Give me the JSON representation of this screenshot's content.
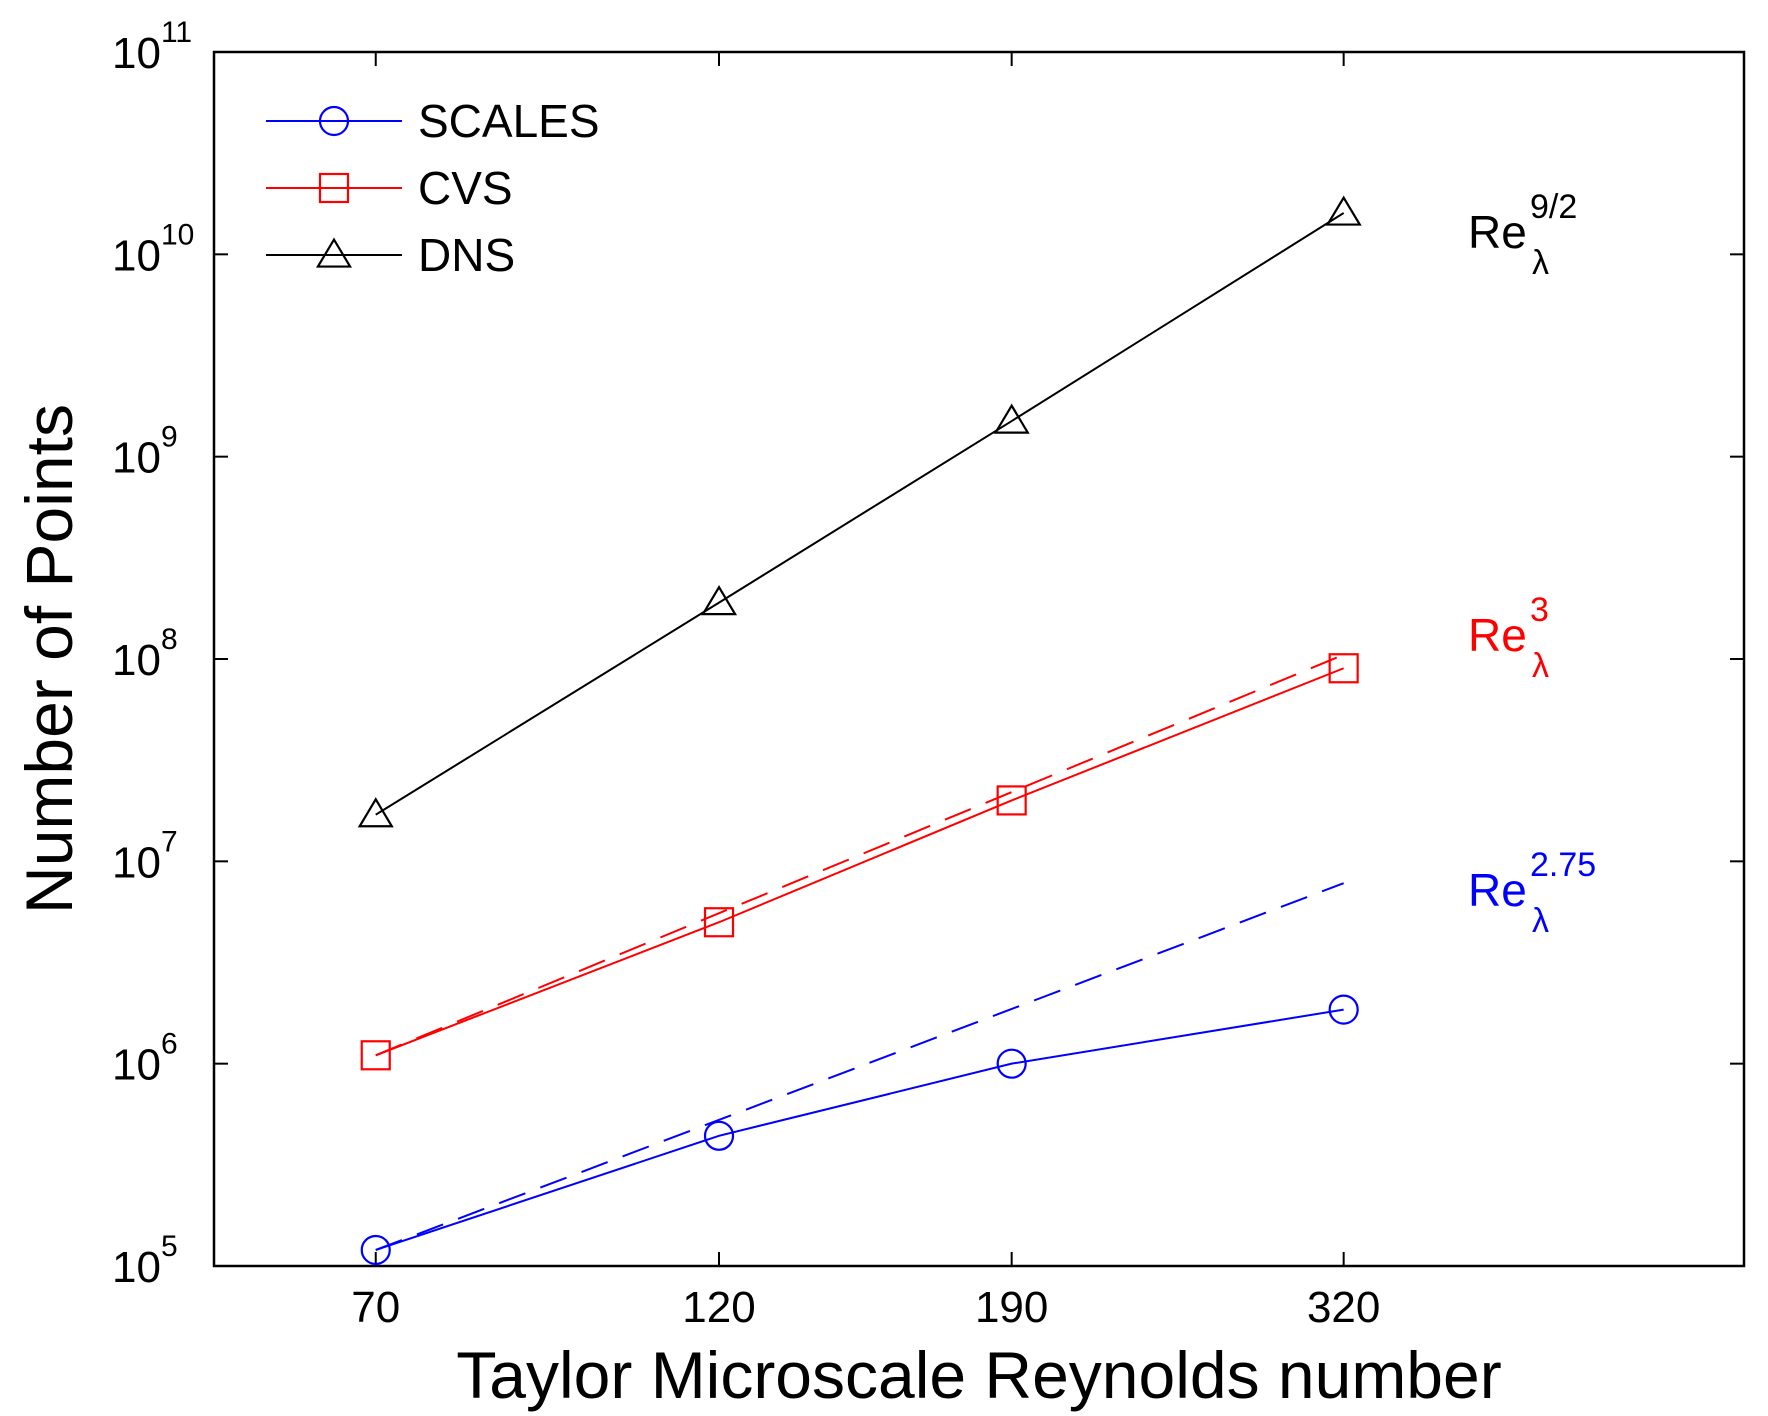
{
  "chart_data": {
    "type": "line",
    "ylabel": "Number of Points",
    "xlabel": "Taylor Microscale Reynolds number",
    "x_scale": "log",
    "y_scale": "log",
    "xlim": [
      54.3,
      600
    ],
    "ylim": [
      100000,
      100000000000
    ],
    "x_ticks": [
      70,
      120,
      190,
      320
    ],
    "x_tick_labels": [
      "70",
      "120",
      "190",
      "320"
    ],
    "y_ticks": [
      100000,
      1000000,
      10000000,
      100000000,
      1000000000,
      10000000000,
      100000000000
    ],
    "y_tick_labels": [
      {
        "base": "10",
        "exp": "5"
      },
      {
        "base": "10",
        "exp": "6"
      },
      {
        "base": "10",
        "exp": "7"
      },
      {
        "base": "10",
        "exp": "8"
      },
      {
        "base": "10",
        "exp": "9"
      },
      {
        "base": "10",
        "exp": "10"
      },
      {
        "base": "10",
        "exp": "11"
      }
    ],
    "series": [
      {
        "name": "SCALES",
        "color": "#0000ff",
        "marker": "circle",
        "x": [
          70,
          120,
          190,
          320
        ],
        "values": [
          120000,
          440000,
          1000000,
          1850000
        ]
      },
      {
        "name": "CVS",
        "color": "#ff0000",
        "marker": "square",
        "x": [
          70,
          120,
          190,
          320
        ],
        "values": [
          1100000,
          5000000,
          20000000,
          90000000
        ]
      },
      {
        "name": "DNS",
        "color": "#000000",
        "marker": "triangle",
        "x": [
          70,
          120,
          190,
          320
        ],
        "values": [
          17000000,
          190000000,
          1500000000,
          16000000000
        ]
      }
    ],
    "fit_lines": [
      {
        "series": "CVS",
        "color": "#ff0000",
        "style": "dashed",
        "x": [
          70,
          320
        ],
        "values": [
          1100000,
          105000000
        ]
      },
      {
        "series": "SCALES",
        "color": "#0000ff",
        "style": "dashed",
        "x": [
          70,
          320
        ],
        "values": [
          120000,
          7800000
        ]
      }
    ],
    "annotations": [
      {
        "base": "Re",
        "sub": "λ",
        "sup": "9/2",
        "color": "#000000",
        "x": 320,
        "y": 14000000000
      },
      {
        "base": "Re",
        "sub": "λ",
        "sup": "3",
        "color": "#ff0000",
        "x": 320,
        "y": 100000000
      },
      {
        "base": "Re",
        "sub": "λ",
        "sup": "2.75",
        "color": "#0000ff",
        "x": 320,
        "y": 6300000
      }
    ],
    "legend": {
      "position": "top-left",
      "entries": [
        "SCALES",
        "CVS",
        "DNS"
      ]
    }
  }
}
